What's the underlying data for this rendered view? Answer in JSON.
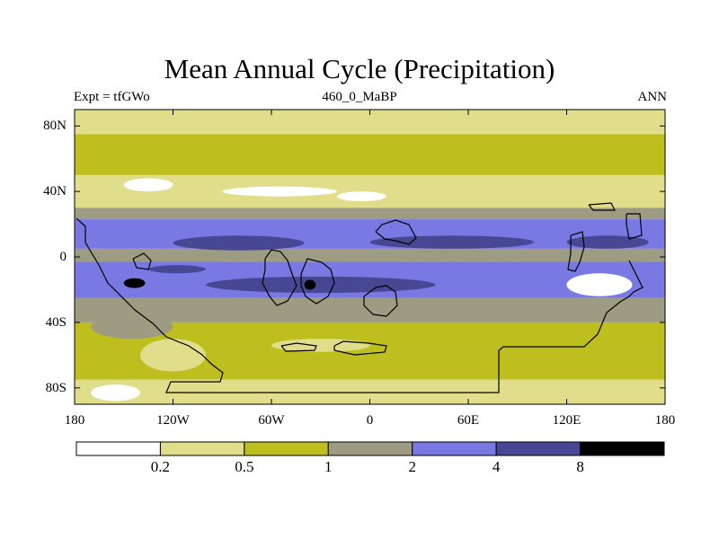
{
  "chart_data": {
    "type": "heatmap",
    "title": "Mean Annual Cycle (Precipitation)",
    "left_subtitle": "Expt = tfGWo",
    "center_subtitle": "460_0_MaBP",
    "right_subtitle": "ANN",
    "x_range": [
      -180,
      180
    ],
    "y_range": [
      -90,
      90
    ],
    "x_ticks": [
      {
        "value": -180,
        "label": "180"
      },
      {
        "value": -120,
        "label": "120W"
      },
      {
        "value": -60,
        "label": "60W"
      },
      {
        "value": 0,
        "label": "0"
      },
      {
        "value": 60,
        "label": "60E"
      },
      {
        "value": 120,
        "label": "120E"
      },
      {
        "value": 180,
        "label": "180"
      }
    ],
    "y_ticks": [
      {
        "value": 80,
        "label": "80N"
      },
      {
        "value": 40,
        "label": "40N"
      },
      {
        "value": 0,
        "label": "0"
      },
      {
        "value": -40,
        "label": "40S"
      },
      {
        "value": -80,
        "label": "80S"
      }
    ],
    "contour_levels": [
      "0.2",
      "0.5",
      "1",
      "2",
      "4",
      "8"
    ],
    "colorbar_colors": [
      "#ffffff",
      "#e0de8a",
      "#bebe1f",
      "#9d9b82",
      "#7a79e3",
      "#484794",
      "#000000"
    ],
    "zonal_bands": [
      {
        "lat": [
          75,
          90
        ],
        "level": 1
      },
      {
        "lat": [
          50,
          75
        ],
        "level": 2
      },
      {
        "lat": [
          30,
          50
        ],
        "level": 1
      },
      {
        "lat": [
          23,
          30
        ],
        "level": 3
      },
      {
        "lat": [
          5,
          23
        ],
        "level": 4
      },
      {
        "lat": [
          -3,
          5
        ],
        "level": 3
      },
      {
        "lat": [
          -25,
          -3
        ],
        "level": 4
      },
      {
        "lat": [
          -40,
          -25
        ],
        "level": 3
      },
      {
        "lat": [
          -62,
          -40
        ],
        "level": 2
      },
      {
        "lat": [
          -75,
          -62
        ],
        "level": 2
      },
      {
        "lat": [
          -90,
          -75
        ],
        "level": 1
      }
    ],
    "regional_patches": [
      {
        "lon": [
          -135,
          -100
        ],
        "lat": [
          -5,
          -10
        ],
        "level": 5
      },
      {
        "lon": [
          -120,
          -40
        ],
        "lat": [
          13,
          4
        ],
        "level": 5
      },
      {
        "lon": [
          0,
          100
        ],
        "lat": [
          13,
          5
        ],
        "level": 5
      },
      {
        "lon": [
          120,
          170
        ],
        "lat": [
          13,
          5
        ],
        "level": 5
      },
      {
        "lon": [
          -100,
          40
        ],
        "lat": [
          -12,
          -22
        ],
        "level": 5
      },
      {
        "lon": [
          -90,
          -20
        ],
        "lat": [
          43,
          37
        ],
        "level": 0
      },
      {
        "lon": [
          -150,
          -120
        ],
        "lat": [
          48,
          40
        ],
        "level": 0
      },
      {
        "lon": [
          -20,
          10
        ],
        "lat": [
          40,
          34
        ],
        "level": 0
      },
      {
        "lon": [
          120,
          160
        ],
        "lat": [
          -10,
          -24
        ],
        "level": 0
      },
      {
        "lon": [
          -60,
          0
        ],
        "lat": [
          -50,
          -58
        ],
        "level": 1
      },
      {
        "lon": [
          90,
          150
        ],
        "lat": [
          -40,
          -60
        ],
        "level": 2
      },
      {
        "lon": [
          -170,
          -120
        ],
        "lat": [
          -35,
          -50
        ],
        "level": 3
      },
      {
        "lon": [
          -140,
          -100
        ],
        "lat": [
          -50,
          -70
        ],
        "level": 1
      },
      {
        "lon": [
          -170,
          -140
        ],
        "lat": [
          -78,
          -88
        ],
        "level": 0
      },
      {
        "lon": [
          -150,
          -137
        ],
        "lat": [
          -13,
          -19
        ],
        "level": 6
      },
      {
        "lon": [
          -40,
          -33
        ],
        "lat": [
          -14,
          -20
        ],
        "level": 6
      }
    ]
  }
}
